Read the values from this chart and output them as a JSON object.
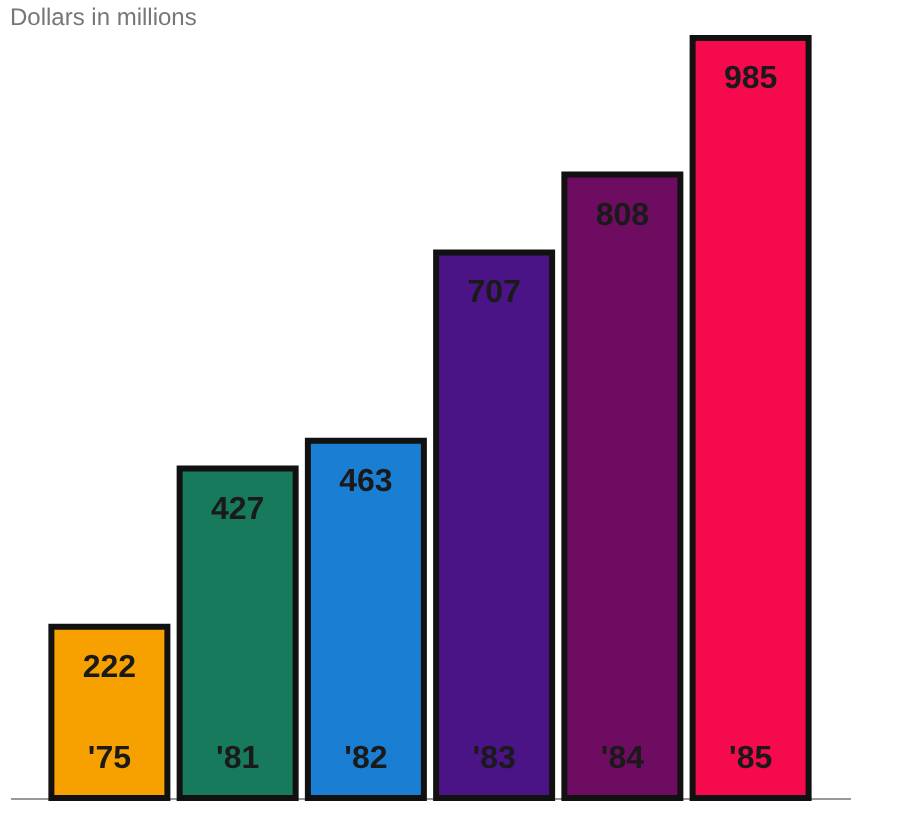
{
  "chart_data": {
    "type": "bar",
    "title": "Dollars in millions",
    "categories": [
      "'75",
      "'81",
      "'82",
      "'83",
      "'84",
      "'85"
    ],
    "values": [
      222,
      427,
      463,
      707,
      808,
      985
    ],
    "colors": [
      "#f7a100",
      "#187a5c",
      "#1a7fd2",
      "#4a1486",
      "#6e0c62",
      "#f50a4e"
    ],
    "data_labels": true,
    "grid": false
  }
}
